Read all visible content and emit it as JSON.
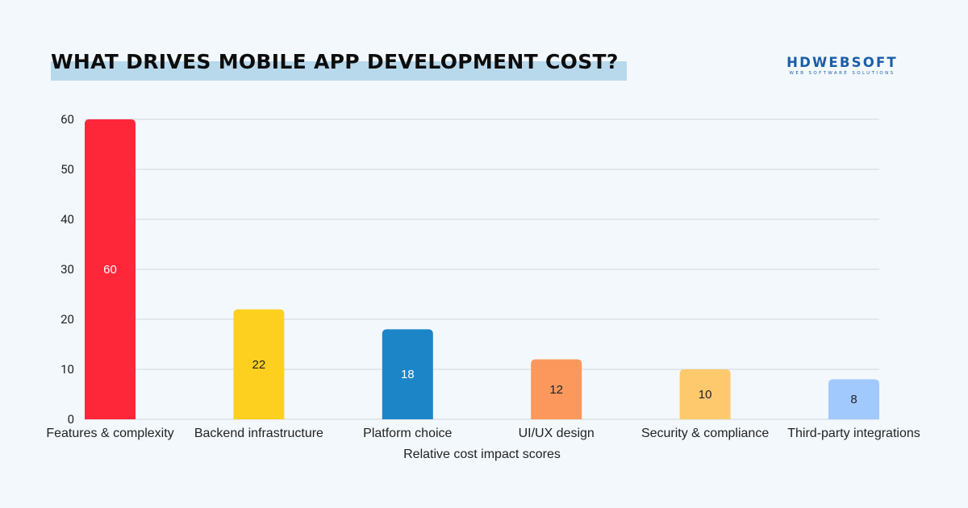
{
  "header": {
    "title": "WHAT DRIVES MOBILE APP DEVELOPMENT COST?",
    "logo_main": "HDWEBSOFT",
    "logo_sub": "WEB SOFTWARE SOLUTIONS"
  },
  "colors": {
    "background": "#f3f8fc",
    "title_highlight": "#b8d8ec",
    "brand": "#1a5ea8",
    "gridline": "#cfd6dc"
  },
  "chart_data": {
    "type": "bar",
    "title": "WHAT DRIVES MOBILE APP DEVELOPMENT COST?",
    "xlabel": "Relative cost impact scores",
    "ylabel": "",
    "ylim": [
      0,
      60
    ],
    "yticks": [
      0,
      10,
      20,
      30,
      40,
      50,
      60
    ],
    "grid": true,
    "categories": [
      "Features & complexity",
      "Backend infrastructure",
      "Platform choice",
      "UI/UX design",
      "Security & compliance",
      "Third-party integrations"
    ],
    "values": [
      60,
      22,
      18,
      12,
      10,
      8
    ],
    "bar_colors": [
      "#fe2639",
      "#fdd01f",
      "#1b85c8",
      "#fc985c",
      "#fec96d",
      "#a1c9fe"
    ],
    "label_colors": [
      "#ffffff",
      "#222222",
      "#ffffff",
      "#222222",
      "#222222",
      "#222222"
    ]
  }
}
